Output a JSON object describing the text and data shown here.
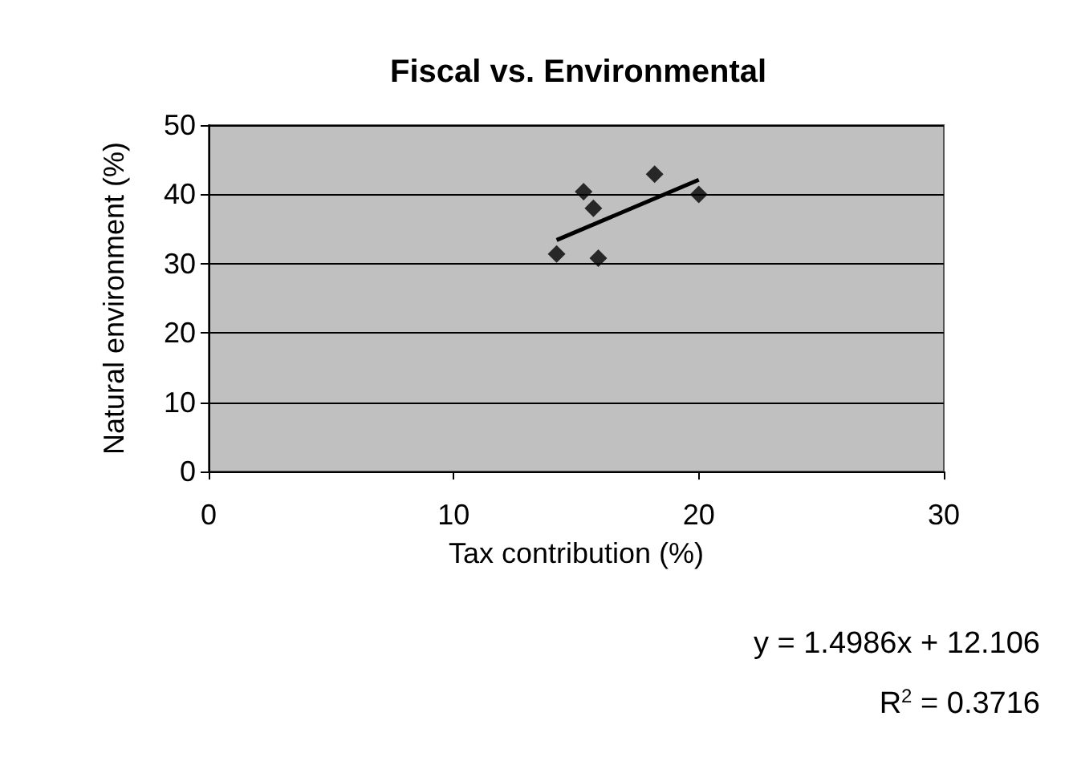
{
  "chart_data": {
    "type": "scatter",
    "title": "Fiscal vs. Environmental",
    "xlabel": "Tax contribution (%)",
    "ylabel": "Natural environment (%)",
    "series": [
      {
        "color": "#000000",
        "marker": "diamond",
        "x": [
          14.2,
          15.3,
          15.7,
          15.9,
          18.2,
          20.0
        ],
        "values": [
          31.4,
          40.4,
          38,
          30.8,
          42.9,
          40
        ]
      },
      {
        "type": "line",
        "color": "#000000",
        "x": [
          14.2,
          20.0
        ],
        "values": [
          33.4,
          42.1
        ]
      }
    ],
    "xlim": [
      0,
      30
    ],
    "xticks": [
      0,
      10,
      20,
      30
    ],
    "ylim": [
      0,
      50
    ],
    "yticks": [
      0,
      10,
      20,
      30,
      40,
      50
    ],
    "grid": "y",
    "annotations": [
      "y = 1.4986x + 12.106",
      "R$^{2}$ = 0.3716"
    ]
  }
}
